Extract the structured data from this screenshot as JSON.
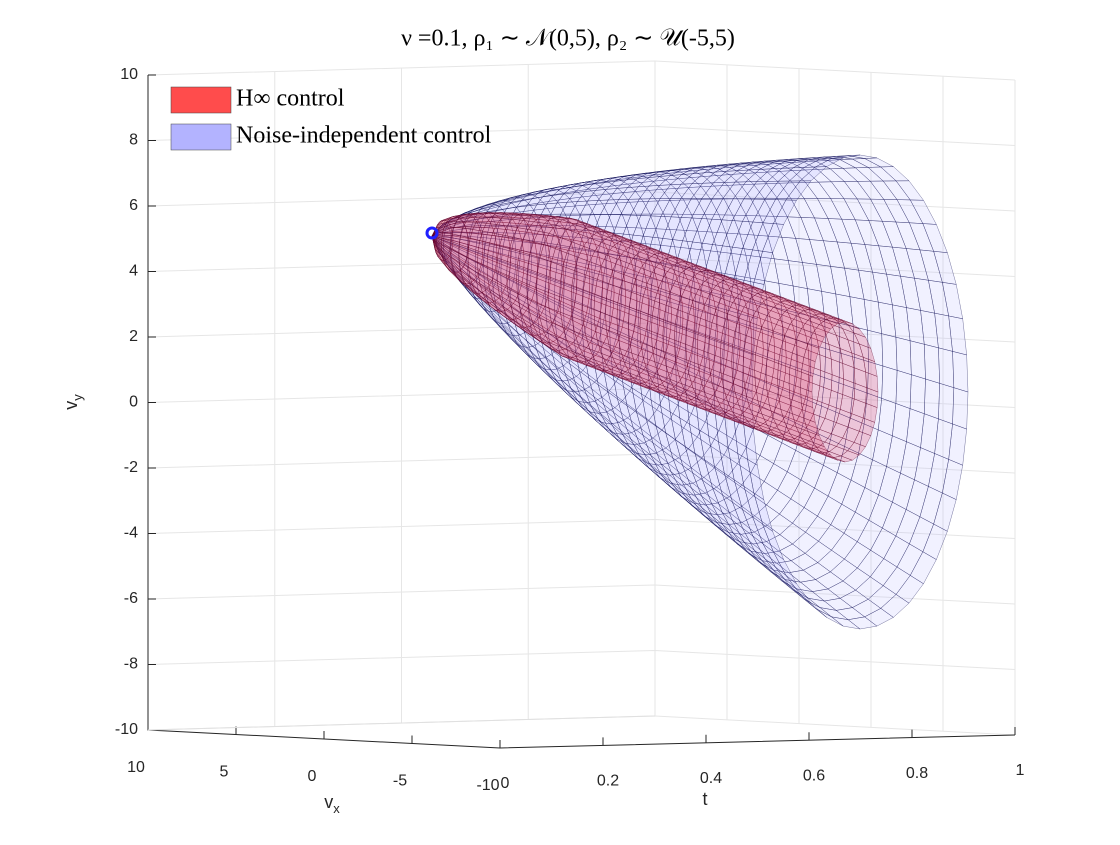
{
  "chart_data": {
    "type": "surface3d",
    "title": "ν =0.1, ρ₁ ∼ 𝒩(0,5), ρ₂ ∼ 𝒰(-5,5)",
    "xlabel": "t",
    "ylabel": [
      "v",
      "x"
    ],
    "zlabel": [
      "v",
      "y"
    ],
    "xlim": [
      0,
      1
    ],
    "xticks": [
      0,
      0.2,
      0.4,
      0.6,
      0.8,
      1
    ],
    "ylim": [
      10,
      -10
    ],
    "yticks": [
      10,
      5,
      0,
      -5,
      -10
    ],
    "zlim": [
      -10,
      10
    ],
    "zticks": [
      -10,
      -8,
      -6,
      -4,
      -2,
      0,
      2,
      4,
      6,
      8,
      10
    ],
    "grid": true,
    "legend": "upper left",
    "series": [
      {
        "name": "H∞ control",
        "color": "#ff4c4c"
      },
      {
        "name": "Noise-independent control",
        "color": "#b3b3ff"
      }
    ]
  }
}
